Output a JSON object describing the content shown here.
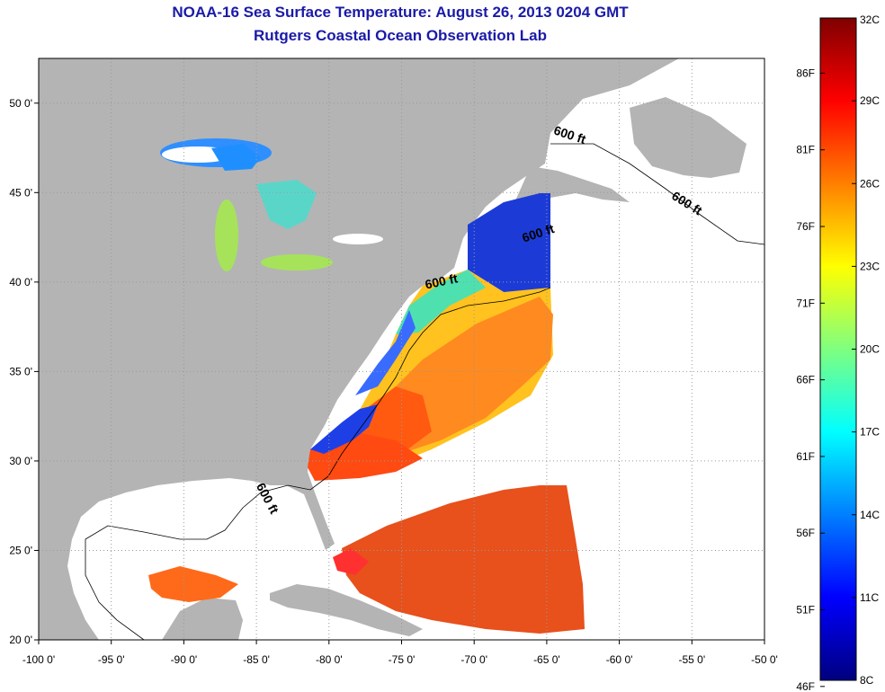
{
  "header": {
    "title": "NOAA-16 Sea Surface Temperature:  August 26, 2013 0204 GMT",
    "subtitle": "Rutgers Coastal Ocean Observation Lab"
  },
  "map": {
    "lon_range": [
      -100,
      -50
    ],
    "lat_range": [
      20,
      52.5
    ],
    "lon_ticks": [
      {
        "value": -100,
        "label": "-100 0'"
      },
      {
        "value": -95,
        "label": "-95 0'"
      },
      {
        "value": -90,
        "label": "-90 0'"
      },
      {
        "value": -85,
        "label": "-85 0'"
      },
      {
        "value": -80,
        "label": "-80 0'"
      },
      {
        "value": -75,
        "label": "-75 0'"
      },
      {
        "value": -70,
        "label": "-70 0'"
      },
      {
        "value": -65,
        "label": "-65 0'"
      },
      {
        "value": -60,
        "label": "-60 0'"
      },
      {
        "value": -55,
        "label": "-55 0'"
      },
      {
        "value": -50,
        "label": "-50 0'"
      }
    ],
    "lat_ticks": [
      {
        "value": 20,
        "label": "20 0'"
      },
      {
        "value": 25,
        "label": "25 0'"
      },
      {
        "value": 30,
        "label": "30 0'"
      },
      {
        "value": 35,
        "label": "35 0'"
      },
      {
        "value": 40,
        "label": "40 0'"
      },
      {
        "value": 45,
        "label": "45 0'"
      },
      {
        "value": 50,
        "label": "50 0'"
      }
    ],
    "grid": "dotted",
    "contour_labels": [
      {
        "text": "600 ft",
        "lon": -63.5,
        "lat": 48.0,
        "angle": 18
      },
      {
        "text": "600 ft",
        "lon": -55.5,
        "lat": 44.2,
        "angle": 32
      },
      {
        "text": "600 ft",
        "lon": -65.5,
        "lat": 42.5,
        "angle": -18
      },
      {
        "text": "600 ft",
        "lon": -72.2,
        "lat": 39.8,
        "angle": -12
      },
      {
        "text": "600 ft",
        "lon": -84.5,
        "lat": 27.8,
        "angle": 62
      }
    ],
    "colors": {
      "land": "#b4b4b4",
      "ocean_nodata": "#ffffff",
      "grid": "#9a9a9a"
    }
  },
  "colorbar": {
    "min_c": 8,
    "max_c": 32,
    "celsius_ticks": [
      {
        "value": 32,
        "label": "32C"
      },
      {
        "value": 29,
        "label": "29C"
      },
      {
        "value": 26,
        "label": "26C"
      },
      {
        "value": 23,
        "label": "23C"
      },
      {
        "value": 20,
        "label": "20C"
      },
      {
        "value": 17,
        "label": "17C"
      },
      {
        "value": 14,
        "label": "14C"
      },
      {
        "value": 11,
        "label": "11C"
      },
      {
        "value": 8,
        "label": "8C"
      }
    ],
    "fahrenheit_ticks": [
      {
        "value": 86,
        "label": "86F"
      },
      {
        "value": 81,
        "label": "81F"
      },
      {
        "value": 76,
        "label": "76F"
      },
      {
        "value": 71,
        "label": "71F"
      },
      {
        "value": 66,
        "label": "66F"
      },
      {
        "value": 61,
        "label": "61F"
      },
      {
        "value": 56,
        "label": "56F"
      },
      {
        "value": 51,
        "label": "51F"
      },
      {
        "value": 46,
        "label": "46F"
      }
    ],
    "stops": [
      "#00007f",
      "#0000ff",
      "#007fff",
      "#00ffff",
      "#7fff7f",
      "#ffff00",
      "#ff7f00",
      "#ff0000",
      "#7f0000"
    ]
  }
}
